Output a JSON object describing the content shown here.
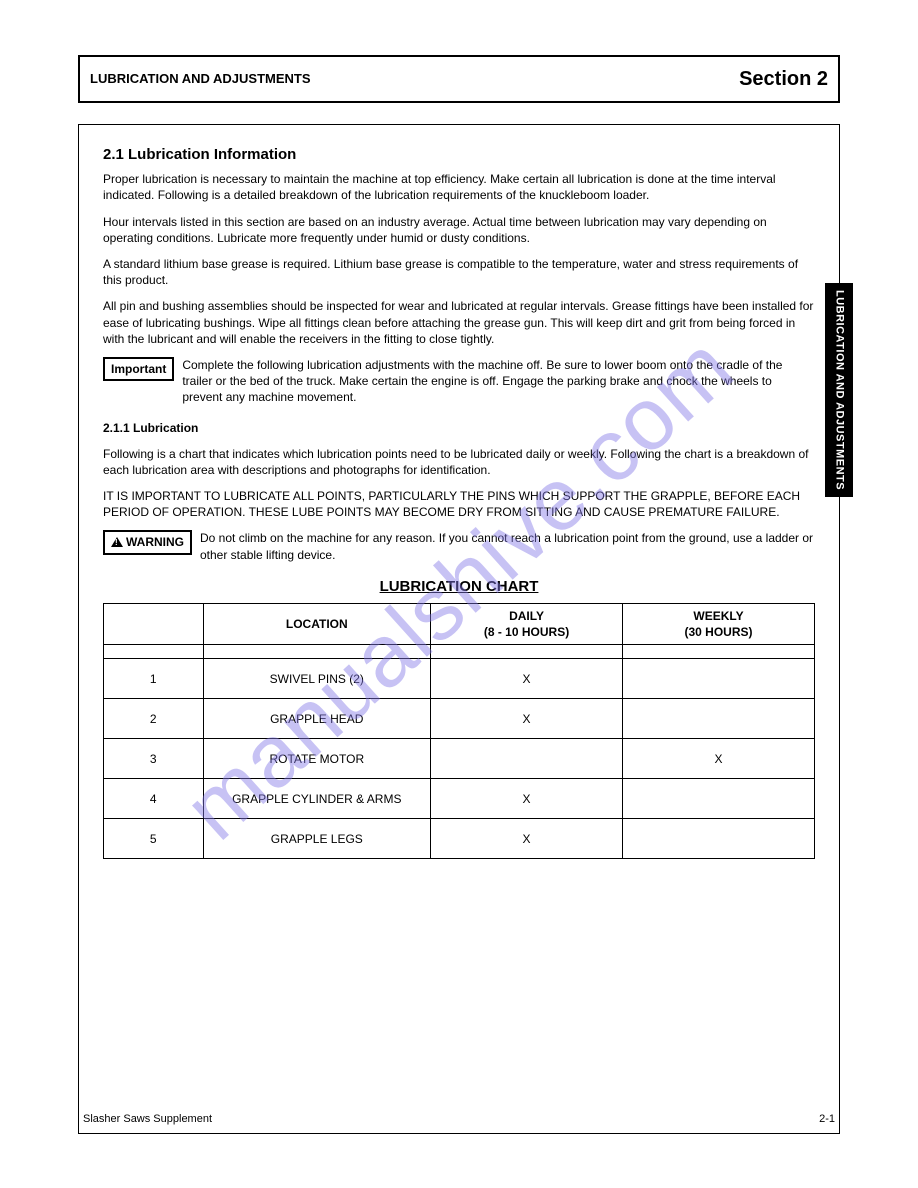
{
  "watermark": "manualshive.com",
  "header": {
    "left": "LUBRICATION AND ADJUSTMENTS",
    "right": "Section 2"
  },
  "side_tab": "LUBRICATION AND ADJUSTMENTS",
  "section_title": "2.1 Lubrication Information",
  "intro_paragraphs": [
    "Proper lubrication is necessary to maintain the machine at top efficiency. Make certain all lubrication is done at the time interval indicated. Following is a detailed breakdown of the lubrication requirements of the knuckleboom loader.",
    "Hour intervals listed in this section are based on an industry average. Actual time between lubrication may vary depending on operating conditions. Lubricate more frequently under humid or dusty conditions.",
    "A standard lithium base grease is required. Lithium base grease is compatible to the temperature, water and stress requirements of this product.",
    "All pin and bushing assemblies should be inspected for wear and lubricated at regular intervals. Grease fittings have been installed for ease of lubricating bushings. Wipe all fittings clean before attaching the grease gun. This will keep dirt and grit from being forced in with the lubricant and will enable the receivers in the fitting to close tightly."
  ],
  "important_label": "Important",
  "important_text": "Complete the following lubrication adjustments with the machine off. Be sure to lower boom onto the cradle of the trailer or the bed of the truck. Make certain the engine is off. Engage the parking brake and chock the wheels to prevent any machine movement.",
  "heading_211": "2.1.1 Lubrication",
  "para_211_1": "Following is a chart that indicates which lubrication points need to be lubricated daily or weekly. Following the chart is a breakdown of each lubrication area with descriptions and photographs for identification.",
  "para_211_2": "IT IS IMPORTANT TO LUBRICATE ALL POINTS, PARTICULARLY THE PINS WHICH SUPPORT THE GRAPPLE, BEFORE EACH PERIOD OF OPERATION. THESE LUBE POINTS MAY BECOME DRY FROM SITTING AND CAUSE PREMATURE FAILURE.",
  "warning_label": "WARNING",
  "warning_text": "Do not climb on the machine for any reason. If you cannot reach a lubrication point from the ground, use a ladder or other stable lifting device.",
  "chart_title": "LUBRICATION CHART",
  "table": {
    "columns": [
      "",
      "LOCATION",
      "DAILY\n(8 - 10 HOURS)",
      "WEEKLY\n(30 HOURS)"
    ],
    "rows": [
      [
        "1",
        "SWIVEL PINS (2)",
        "X",
        ""
      ],
      [
        "2",
        "GRAPPLE HEAD",
        "X",
        ""
      ],
      [
        "3",
        "ROTATE MOTOR",
        "",
        "X"
      ],
      [
        "4",
        "GRAPPLE CYLINDER & ARMS",
        "X",
        ""
      ],
      [
        "5",
        "GRAPPLE LEGS",
        "X",
        ""
      ]
    ]
  },
  "footer": {
    "left": "Slasher Saws Supplement",
    "right": "2-1"
  }
}
